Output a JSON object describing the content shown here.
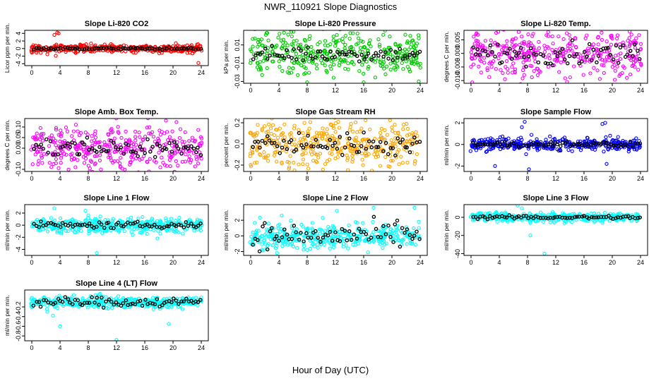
{
  "page": {
    "title": "NWR_110921  Slope Diagnostics",
    "xlabel": "Hour of Day (UTC)"
  },
  "chart_data": [
    {
      "type": "scatter",
      "title": "Slope Li-820 CO2",
      "ylabel": "Licor ppm per min.",
      "color": "#ff0000",
      "xlim": [
        -1,
        25
      ],
      "ylim": [
        -4.5,
        4.8
      ],
      "xticks": [
        0,
        4,
        8,
        12,
        16,
        20,
        24
      ],
      "yticks": [
        -4,
        -2,
        0,
        2,
        4
      ],
      "ytick_labels": [
        "-4",
        "-2",
        "0",
        "2",
        "4"
      ],
      "spread": 0.5,
      "median_spread": 0.15,
      "outliers": [
        [
          3.2,
          3.6
        ],
        [
          3.6,
          4.2
        ],
        [
          3.8,
          4.0
        ],
        [
          3.4,
          -1.9
        ],
        [
          2.2,
          -1.5
        ],
        [
          20.4,
          1.4
        ],
        [
          21.2,
          -0.6
        ],
        [
          23.6,
          -3.8
        ]
      ]
    },
    {
      "type": "scatter",
      "title": "Slope Li-820 Pressure",
      "ylabel": "kPa per min.",
      "color": "#00cc00",
      "xlim": [
        -1,
        25
      ],
      "ylim": [
        -0.032,
        0.026
      ],
      "xticks": [
        0,
        4,
        8,
        12,
        16,
        20,
        24
      ],
      "yticks": [
        -0.03,
        -0.01,
        0.01
      ],
      "ytick_labels": [
        "-0.03",
        "-0.01",
        "0.01"
      ],
      "spread": 0.011,
      "median_spread": 0.004,
      "outliers": [
        [
          8,
          -0.031
        ],
        [
          16,
          -0.031
        ],
        [
          23.8,
          -0.03
        ],
        [
          12.2,
          0.021
        ],
        [
          22.6,
          0.02
        ],
        [
          0.6,
          0.017
        ]
      ]
    },
    {
      "type": "scatter",
      "title": "Slope Li-820 Temp.",
      "ylabel": "degrees C per min.",
      "color": "#ff00ff",
      "xlim": [
        -1,
        25
      ],
      "ylim": [
        -0.011,
        0.0085
      ],
      "xticks": [
        0,
        4,
        8,
        12,
        16,
        20,
        24
      ],
      "yticks": [
        -0.01,
        -0.005,
        0.0,
        0.005
      ],
      "ytick_labels": [
        "-0.010",
        "-0.005",
        "0.000",
        "0.005"
      ],
      "spread": 0.0045,
      "median_spread": 0.002,
      "outliers": [
        [
          4.8,
          -0.0095
        ],
        [
          13.6,
          -0.0105
        ],
        [
          8.8,
          0.0072
        ],
        [
          20,
          0.0055
        ]
      ]
    },
    {
      "type": "scatter",
      "title": "Slope Amb. Box Temp.",
      "ylabel": "degrees C per min.",
      "color": "#ff00ff",
      "xlim": [
        -1,
        25
      ],
      "ylim": [
        -0.11,
        0.14
      ],
      "xticks": [
        0,
        4,
        8,
        12,
        16,
        20,
        24
      ],
      "yticks": [
        -0.1,
        0.0,
        0.05,
        0.1
      ],
      "ytick_labels": [
        "-0.10",
        "0.00",
        "0.05",
        "0.10"
      ],
      "spread": 0.05,
      "median_spread": 0.025,
      "outliers": [
        [
          8.2,
          -0.11
        ],
        [
          16.6,
          -0.11
        ],
        [
          18.2,
          -0.09
        ],
        [
          19,
          0.13
        ]
      ]
    },
    {
      "type": "scatter",
      "title": "Slope Gas Stream RH",
      "ylabel": "percent per min.",
      "color": "#ffa500",
      "xlim": [
        -1,
        25
      ],
      "ylim": [
        -0.26,
        0.24
      ],
      "xticks": [
        0,
        4,
        8,
        12,
        16,
        20,
        24
      ],
      "yticks": [
        -0.2,
        0.0,
        0.2
      ],
      "ytick_labels": [
        "-0.2",
        "0.0",
        "0.2"
      ],
      "spread": 0.11,
      "median_spread": 0.05,
      "outliers": [
        [
          6.2,
          -0.25
        ],
        [
          12.4,
          0.21
        ],
        [
          1,
          0.18
        ],
        [
          14.2,
          0.19
        ]
      ]
    },
    {
      "type": "scatter",
      "title": "Slope Sample Flow",
      "ylabel": "ml/min per min.",
      "color": "#0000ff",
      "xlim": [
        -1,
        25
      ],
      "ylim": [
        -2.5,
        2.4
      ],
      "xticks": [
        0,
        4,
        8,
        12,
        16,
        20,
        24
      ],
      "yticks": [
        -2,
        0,
        2
      ],
      "ytick_labels": [
        "-2",
        "0",
        "2"
      ],
      "spread": 0.3,
      "median_spread": 0.12,
      "outliers": [
        [
          7.2,
          1.6
        ],
        [
          7.6,
          2.1
        ],
        [
          8.2,
          -2.3
        ],
        [
          18.6,
          1.9
        ],
        [
          19,
          2.0
        ],
        [
          3.4,
          -2.0
        ],
        [
          7.8,
          -0.9
        ],
        [
          19.2,
          -1.8
        ]
      ]
    },
    {
      "type": "scatter",
      "title": "Slope Line 1 Flow",
      "ylabel": "ml/min per min.",
      "color": "#00ffff",
      "xlim": [
        -1,
        25
      ],
      "ylim": [
        -5.0,
        3.4
      ],
      "xticks": [
        0,
        4,
        8,
        12,
        16,
        20,
        24
      ],
      "yticks": [
        -4,
        -2,
        0,
        2
      ],
      "ytick_labels": [
        "-4",
        "-2",
        "0",
        "2"
      ],
      "spread": 0.6,
      "median_spread": 0.25,
      "outliers": [
        [
          3.2,
          2.8
        ],
        [
          7.6,
          2.4
        ],
        [
          8,
          1.6
        ],
        [
          9.2,
          -4.6
        ],
        [
          17.8,
          -2.2
        ],
        [
          18.2,
          -1.4
        ],
        [
          3.6,
          -1.2
        ]
      ]
    },
    {
      "type": "scatter",
      "title": "Slope Line 2 Flow",
      "ylabel": "ml/min per min.",
      "color": "#00ffff",
      "xlim": [
        -1,
        25
      ],
      "ylim": [
        -2.5,
        4.0
      ],
      "xticks": [
        0,
        4,
        8,
        12,
        16,
        20,
        24
      ],
      "yticks": [
        -2,
        0,
        2
      ],
      "ytick_labels": [
        "-2",
        "0",
        "2"
      ],
      "spread": 0.8,
      "median_spread": 0.8,
      "outliers": [
        [
          12.2,
          3.2
        ],
        [
          17.4,
          3.6
        ],
        [
          23.2,
          3.6
        ],
        [
          4.4,
          2.6
        ],
        [
          10.2,
          2.3
        ],
        [
          8,
          -1.8
        ],
        [
          16.6,
          -2.1
        ]
      ]
    },
    {
      "type": "scatter",
      "title": "Slope Line 3 Flow",
      "ylabel": "ml/min per min.",
      "color": "#00ffff",
      "xlim": [
        -1,
        25
      ],
      "ylim": [
        -42,
        14
      ],
      "xticks": [
        0,
        4,
        8,
        12,
        16,
        20,
        24
      ],
      "yticks": [
        -40,
        -20,
        0
      ],
      "ytick_labels": [
        "-40",
        "-20",
        "0"
      ],
      "spread": 2.5,
      "median_spread": 1.0,
      "outliers": [
        [
          6.6,
          13
        ],
        [
          7.2,
          10
        ],
        [
          8.4,
          -20
        ],
        [
          10.4,
          -40
        ],
        [
          18.6,
          -6
        ]
      ]
    },
    {
      "type": "scatter",
      "title": "Slope Line 4 (LT) Flow",
      "ylabel": "ml/min per min.",
      "color": "#00ffff",
      "xlim": [
        -1,
        25
      ],
      "ylim": [
        -0.9,
        0.15
      ],
      "xticks": [
        0,
        4,
        8,
        12,
        16,
        20,
        24
      ],
      "yticks": [
        -0.8,
        -0.6,
        -0.4,
        -0.2
      ],
      "ytick_labels": [
        "-0.8",
        "-0.6",
        "-0.4",
        "-0.2"
      ],
      "spread": 0.06,
      "median_spread": 0.05,
      "center": -0.1,
      "outliers": [
        [
          3,
          -0.38
        ],
        [
          4,
          -0.6
        ],
        [
          12,
          -0.88
        ],
        [
          19.4,
          -0.55
        ],
        [
          2.2,
          -0.3
        ]
      ]
    }
  ]
}
